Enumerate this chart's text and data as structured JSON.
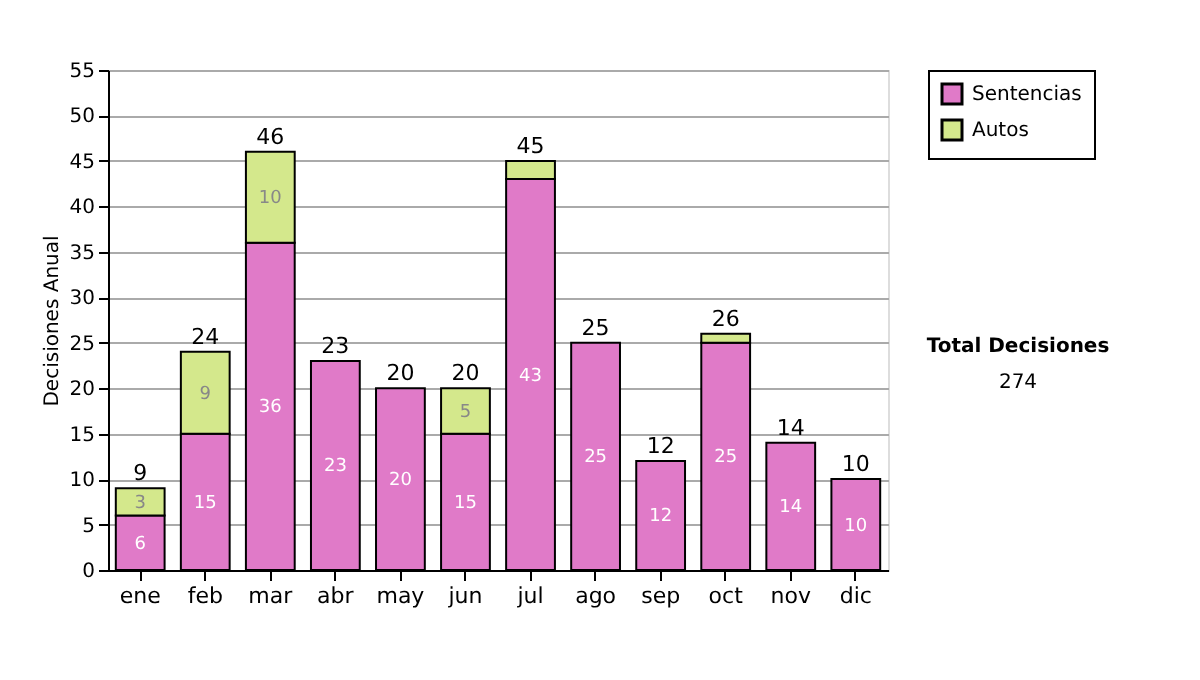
{
  "chart_data": {
    "type": "bar",
    "stacked": true,
    "ylabel": "Decisiones Anual",
    "categories": [
      "ene",
      "feb",
      "mar",
      "abr",
      "may",
      "jun",
      "jul",
      "ago",
      "sep",
      "oct",
      "nov",
      "dic"
    ],
    "series": [
      {
        "name": "Sentencias",
        "color": "#e07ac8",
        "values": [
          6,
          15,
          36,
          23,
          20,
          15,
          43,
          25,
          12,
          25,
          14,
          10
        ],
        "value_labels": [
          "6",
          "15",
          "36",
          "23",
          "20",
          "15",
          "43",
          "25",
          "12",
          "25",
          "14",
          "10"
        ]
      },
      {
        "name": "Autos",
        "color": "#d4e88c",
        "values": [
          3,
          9,
          10,
          0,
          0,
          5,
          2,
          0,
          0,
          1,
          0,
          0
        ],
        "value_labels": [
          "3",
          "9",
          "10",
          null,
          null,
          "5",
          null,
          null,
          null,
          null,
          null,
          null
        ]
      }
    ],
    "totals": [
      "9",
      "24",
      "46",
      "23",
      "20",
      "20",
      "45",
      "25",
      "12",
      "26",
      "14",
      "10"
    ],
    "ylim": [
      0,
      55
    ],
    "yticks": [
      0,
      5,
      10,
      15,
      20,
      25,
      30,
      35,
      40,
      45,
      50,
      55
    ],
    "grid": "y",
    "legend": "right",
    "annotations": [
      "Total Decisiones",
      "274"
    ]
  }
}
